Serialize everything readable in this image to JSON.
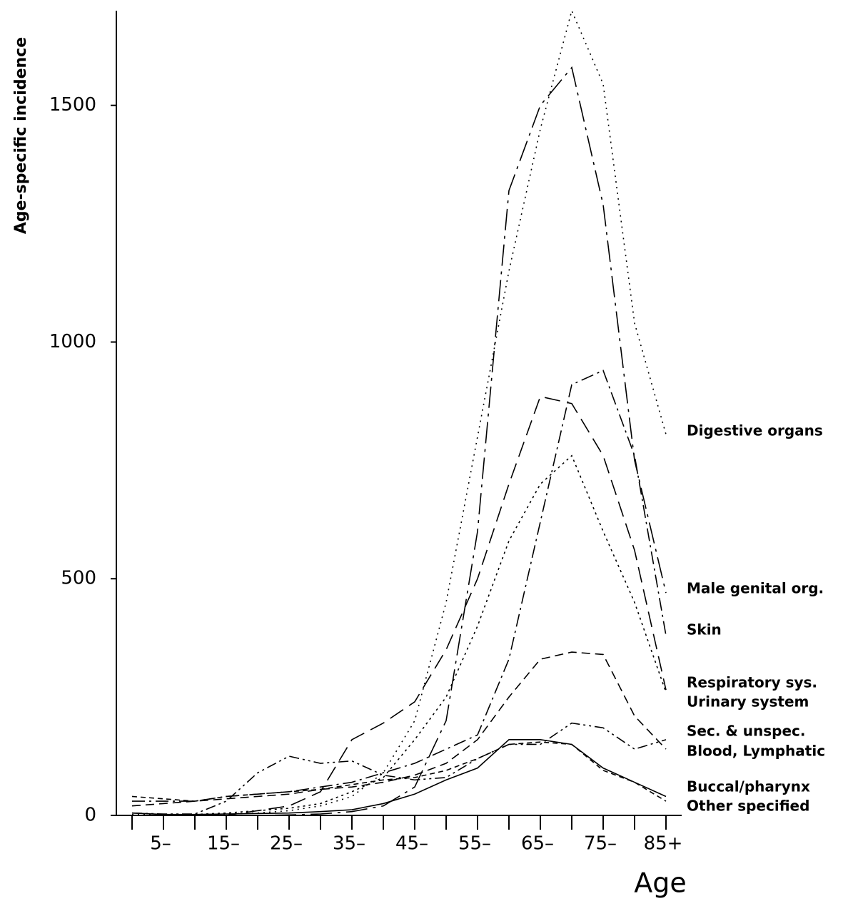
{
  "chart_data": {
    "type": "line",
    "x_label": "Age",
    "y_label": "Age-specific incidence",
    "categories": [
      null,
      "5–",
      null,
      "15–",
      null,
      "25–",
      null,
      "35–",
      null,
      "45–",
      null,
      "55–",
      null,
      "65–",
      null,
      "75–",
      null,
      "85+"
    ],
    "ylim": [
      0,
      1700
    ],
    "yticks": [
      0,
      500,
      1000,
      1500
    ],
    "series": [
      {
        "name": "Digestive organs",
        "color": "#000000",
        "values": [
          2,
          2,
          2,
          3,
          5,
          10,
          20,
          40,
          90,
          200,
          450,
          800,
          1150,
          1450,
          1700,
          1545,
          1040,
          805
        ]
      },
      {
        "name": "Male genital org.",
        "color": "#000000",
        "values": [
          0,
          0,
          0,
          0,
          0,
          1,
          3,
          8,
          20,
          60,
          200,
          600,
          1320,
          1500,
          1580,
          1290,
          750,
          470
        ]
      },
      {
        "name": "Skin",
        "color": "#000000",
        "values": [
          30,
          30,
          30,
          40,
          45,
          50,
          60,
          70,
          90,
          110,
          140,
          170,
          330,
          620,
          910,
          940,
          760,
          380
        ]
      },
      {
        "name": "Respiratory sys.",
        "color": "#000000",
        "values": [
          0,
          0,
          0,
          0,
          10,
          20,
          50,
          160,
          195,
          240,
          350,
          500,
          700,
          885,
          870,
          760,
          560,
          265
        ]
      },
      {
        "name": "Urinary system",
        "color": "#000000",
        "values": [
          0,
          0,
          2,
          5,
          10,
          15,
          25,
          50,
          80,
          160,
          250,
          400,
          580,
          700,
          760,
          600,
          450,
          260
        ]
      },
      {
        "name": "Sec. & unspec.",
        "color": "#000000",
        "values": [
          5,
          3,
          3,
          30,
          90,
          125,
          110,
          115,
          85,
          75,
          80,
          120,
          150,
          150,
          195,
          185,
          140,
          160
        ]
      },
      {
        "name": "Blood, Lymphatic",
        "color": "#000000",
        "values": [
          20,
          25,
          30,
          35,
          40,
          45,
          55,
          60,
          70,
          85,
          110,
          160,
          250,
          330,
          345,
          340,
          210,
          140
        ]
      },
      {
        "name": "Buccal/pharynx",
        "color": "#000000",
        "values": [
          5,
          2,
          2,
          3,
          4,
          5,
          8,
          12,
          25,
          45,
          75,
          100,
          160,
          160,
          150,
          100,
          70,
          40
        ]
      },
      {
        "name": "Other specified",
        "color": "#000000",
        "values": [
          40,
          35,
          30,
          40,
          45,
          50,
          55,
          65,
          75,
          80,
          95,
          120,
          150,
          155,
          150,
          95,
          70,
          30
        ]
      }
    ]
  }
}
